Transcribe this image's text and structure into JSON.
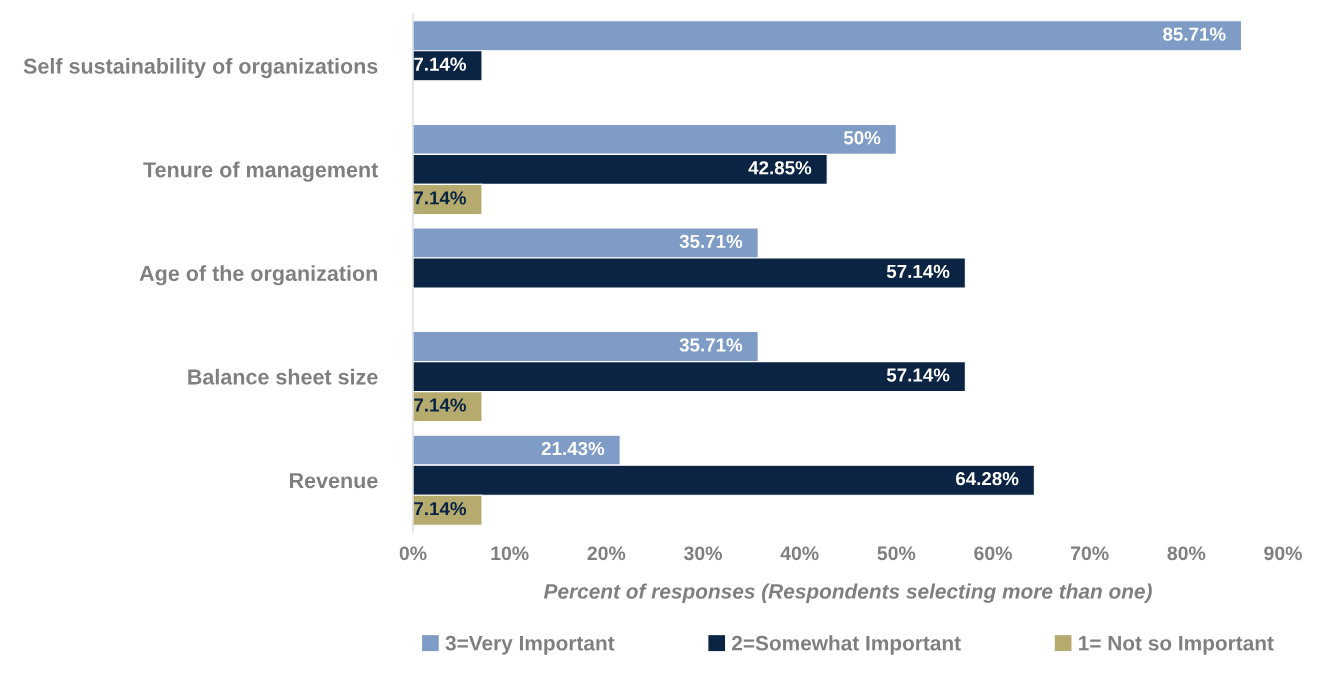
{
  "chart_data": {
    "type": "bar",
    "orientation": "horizontal",
    "categories": [
      "Self sustainability of organizations",
      "Tenure of management",
      "Age of the organization",
      "Balance sheet size",
      "Revenue"
    ],
    "series": [
      {
        "name": "3=Very Important",
        "color": "#7f9cc6",
        "values": [
          85.71,
          50,
          35.71,
          35.71,
          21.43
        ],
        "value_labels": [
          "85.71%",
          "50%",
          "35.71%",
          "35.71%",
          "21.43%"
        ]
      },
      {
        "name": "2=Somewhat Important",
        "color": "#0b2443",
        "values": [
          7.14,
          42.85,
          57.14,
          57.14,
          64.28
        ],
        "value_labels": [
          "7.14%",
          "42.85%",
          "57.14%",
          "57.14%",
          "64.28%"
        ]
      },
      {
        "name": "1= Not so Important",
        "color": "#b5ab6e",
        "values": [
          null,
          7.14,
          null,
          7.14,
          7.14
        ],
        "value_labels": [
          null,
          "7.14%",
          null,
          "7.14%",
          "7.14%"
        ]
      }
    ],
    "xlabel": "Percent of responses (Respondents selecting more than one)",
    "xlim": [
      0,
      90
    ],
    "xticks": [
      {
        "value": 0,
        "label": "0%"
      },
      {
        "value": 10,
        "label": "10%"
      },
      {
        "value": 20,
        "label": "20%"
      },
      {
        "value": 30,
        "label": "30%"
      },
      {
        "value": 40,
        "label": "40%"
      },
      {
        "value": 50,
        "label": "50%"
      },
      {
        "value": 60,
        "label": "60%"
      },
      {
        "value": 70,
        "label": "70%"
      },
      {
        "value": 80,
        "label": "80%"
      },
      {
        "value": 90,
        "label": "90%"
      }
    ],
    "legend": "bottom",
    "grid": false
  }
}
